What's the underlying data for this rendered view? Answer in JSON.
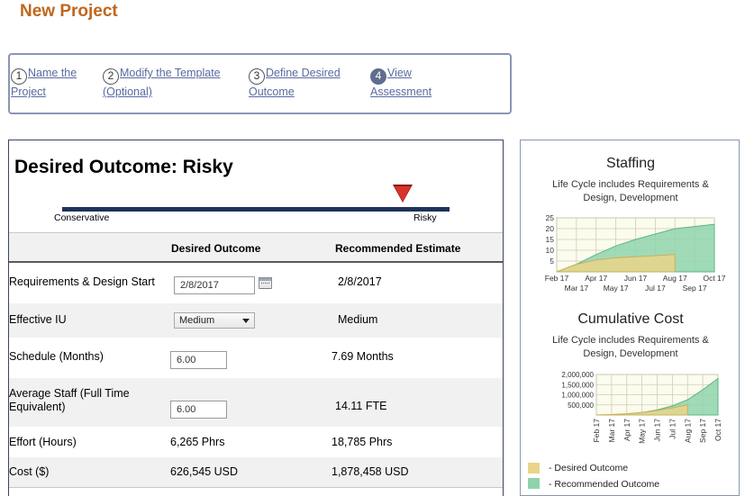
{
  "page_title": "New Project",
  "wizard": {
    "steps": [
      {
        "num": "1",
        "line1": "Name the",
        "line2": "Project"
      },
      {
        "num": "2",
        "line1": "Modify the Template",
        "line2": "(Optional)"
      },
      {
        "num": "3",
        "line1": "Define Desired",
        "line2": "Outcome"
      },
      {
        "num": "4",
        "line1": "View",
        "line2": "Assessment"
      }
    ]
  },
  "outcome": {
    "title": "Desired Outcome: Risky",
    "slider_left_label": "Conservative",
    "slider_right_label": "Risky"
  },
  "table": {
    "headers": [
      "Desired Outcome",
      "Recommended Estimate"
    ],
    "rows": [
      {
        "label": "Requirements & Design Start",
        "desired": "2/8/2017",
        "recommended": "2/8/2017"
      },
      {
        "label": "Effective IU",
        "desired": "Medium",
        "recommended": "Medium"
      },
      {
        "label": "Schedule (Months)",
        "desired": "6.00",
        "recommended": "7.69 Months"
      },
      {
        "label_line1": "Average Staff (Full Time",
        "label_line2": "Equivalent)",
        "desired": "6.00",
        "recommended": "14.11 FTE"
      },
      {
        "label": "Effort (Hours)",
        "desired": "6,265 Phrs",
        "recommended": "18,785 Phrs"
      },
      {
        "label": "Cost ($)",
        "desired": "626,545 USD",
        "recommended": "1,878,458 USD"
      }
    ]
  },
  "colors": {
    "accent": "#c0661b",
    "desired": "#e9d58a",
    "recommended": "#8fd3ad",
    "slider_marker": "#d8332a"
  },
  "staffing_chart": {
    "title": "Staffing",
    "subtitle_line1": "Life Cycle includes Requirements &",
    "subtitle_line2": "Design, Development",
    "chart_data": {
      "type": "area",
      "x_top": [
        "Feb 17",
        "Apr 17",
        "Jun 17",
        "Aug 17",
        "Oct 17"
      ],
      "x_bottom": [
        "Mar 17",
        "May 17",
        "Jul 17",
        "Sep 17"
      ],
      "x": [
        "Feb 17",
        "Mar 17",
        "Apr 17",
        "May 17",
        "Jun 17",
        "Jul 17",
        "Aug 17",
        "Sep 17",
        "Oct 17"
      ],
      "y_ticks": [
        "25",
        "20",
        "15",
        "10",
        "5"
      ],
      "ylim": [
        0,
        25
      ],
      "series": [
        {
          "name": "Desired Outcome",
          "values": [
            0,
            3.5,
            5.5,
            6.5,
            7,
            7.5,
            8,
            null,
            null
          ]
        },
        {
          "name": "Recommended Outcome",
          "values": [
            0,
            3.5,
            8,
            12,
            15,
            17.5,
            20,
            21,
            22
          ]
        }
      ]
    }
  },
  "cost_chart": {
    "title": "Cumulative Cost",
    "subtitle_line1": "Life Cycle includes Requirements &",
    "subtitle_line2": "Design, Development",
    "chart_data": {
      "type": "area",
      "x": [
        "Feb 17",
        "Mar 17",
        "Apr 17",
        "May 17",
        "Jun 17",
        "Jul 17",
        "Aug 17",
        "Sep 17",
        "Oct 17"
      ],
      "y_ticks": [
        "2,000,000",
        "1,500,000",
        "1,000,000",
        "500,000"
      ],
      "ylim": [
        0,
        2000000
      ],
      "series": [
        {
          "name": "Desired Outcome",
          "values": [
            0,
            20000,
            60000,
            120000,
            220000,
            350000,
            500000,
            null,
            null
          ]
        },
        {
          "name": "Recommended Outcome",
          "values": [
            0,
            10000,
            50000,
            120000,
            250000,
            450000,
            750000,
            1250000,
            1800000
          ]
        }
      ]
    }
  },
  "legend": {
    "desired_label": "- Desired Outcome",
    "recommended_label": "- Recommended Outcome"
  }
}
